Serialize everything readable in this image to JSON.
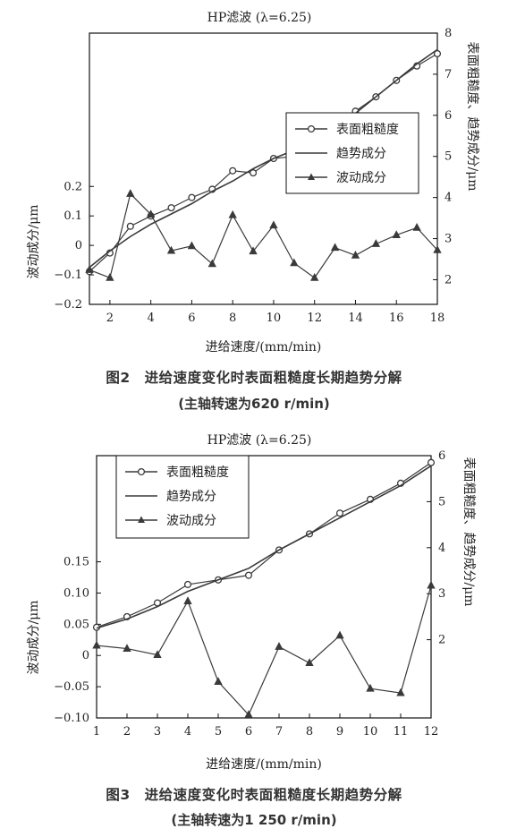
{
  "chart_data": [
    {
      "type": "line",
      "title": "HP滤波 (λ=6.25)",
      "xlabel": "进给速度/(mm/min)",
      "ylabel": "波动成分/μm",
      "y2label": "表面粗糙度、趋势成分/μm",
      "x_ticks": [
        "2",
        "4",
        "6",
        "8",
        "10",
        "12",
        "14",
        "16",
        "18"
      ],
      "y_ticks": [
        "−0.2",
        "−0.1",
        "0",
        "0.1",
        "0.2"
      ],
      "y2_ticks": [
        "2",
        "3",
        "4",
        "5",
        "6",
        "7",
        "8"
      ],
      "xlim": [
        1,
        18
      ],
      "ylim": [
        -0.2,
        0.72
      ],
      "y2lim": [
        1.4,
        8.0
      ],
      "legend_placement": "center-right",
      "series": [
        {
          "name": "表面粗糙度",
          "axis": "right",
          "marker": "circle",
          "x": [
            1,
            2,
            3,
            4,
            5,
            6,
            7,
            8,
            9,
            10,
            11,
            12,
            13,
            14,
            15,
            16,
            17,
            18
          ],
          "values": [
            2.2,
            2.65,
            3.3,
            3.55,
            3.75,
            4.0,
            4.2,
            4.65,
            4.6,
            4.95,
            5.0,
            5.35,
            5.75,
            6.1,
            6.45,
            6.85,
            7.2,
            7.5
          ]
        },
        {
          "name": "趋势成分",
          "axis": "right",
          "marker": "none",
          "x": [
            1,
            2,
            3,
            4,
            5,
            6,
            7,
            8,
            9,
            10,
            11,
            12,
            13,
            14,
            15,
            16,
            17,
            18
          ],
          "values": [
            2.3,
            2.7,
            3.05,
            3.35,
            3.6,
            3.85,
            4.15,
            4.4,
            4.7,
            4.95,
            5.15,
            5.4,
            5.7,
            6.05,
            6.45,
            6.85,
            7.25,
            7.6
          ]
        },
        {
          "name": "波动成分",
          "axis": "left",
          "marker": "triangle",
          "x": [
            1,
            2,
            3,
            4,
            5,
            6,
            7,
            8,
            9,
            10,
            11,
            12,
            13,
            14,
            15,
            16,
            17,
            18
          ],
          "values": [
            -0.083,
            -0.11,
            0.175,
            0.105,
            -0.018,
            -0.002,
            -0.063,
            0.103,
            -0.02,
            0.068,
            -0.06,
            -0.11,
            -0.008,
            -0.034,
            0.005,
            0.035,
            0.06,
            -0.016
          ]
        }
      ]
    },
    {
      "type": "line",
      "title": "HP滤波 (λ=6.25)",
      "xlabel": "进给速度/(mm/min)",
      "ylabel": "波动成分/μm",
      "y2label": "表面粗糙度、趋势成分/μm",
      "x_ticks": [
        "1",
        "2",
        "3",
        "4",
        "5",
        "6",
        "7",
        "8",
        "9",
        "10",
        "11",
        "12"
      ],
      "y_ticks": [
        "−0.10",
        "−0.05",
        "0",
        "0.05",
        "0.10",
        "0.15"
      ],
      "y2_ticks": [
        "2",
        "3",
        "4",
        "5",
        "6"
      ],
      "xlim": [
        1,
        12
      ],
      "ylim": [
        -0.1,
        0.32
      ],
      "y2lim": [
        0.3,
        6.0
      ],
      "legend_placement": "top-left",
      "series": [
        {
          "name": "表面粗糙度",
          "axis": "right",
          "marker": "circle",
          "x": [
            1,
            2,
            3,
            4,
            5,
            6,
            7,
            8,
            9,
            10,
            11,
            12
          ],
          "values": [
            2.27,
            2.5,
            2.8,
            3.2,
            3.3,
            3.4,
            3.95,
            4.3,
            4.75,
            5.05,
            5.4,
            5.85
          ]
        },
        {
          "name": "趋势成分",
          "axis": "right",
          "marker": "none",
          "x": [
            1,
            2,
            3,
            4,
            5,
            6,
            7,
            8,
            9,
            10,
            11,
            12
          ],
          "values": [
            2.25,
            2.45,
            2.72,
            3.05,
            3.3,
            3.55,
            3.95,
            4.3,
            4.65,
            5.0,
            5.35,
            5.78
          ]
        },
        {
          "name": "波动成分",
          "axis": "left",
          "marker": "triangle",
          "x": [
            1,
            2,
            3,
            4,
            5,
            6,
            7,
            8,
            9,
            10,
            11,
            12
          ],
          "values": [
            0.016,
            0.011,
            0.001,
            0.087,
            -0.042,
            -0.095,
            0.014,
            -0.012,
            0.032,
            -0.053,
            -0.06,
            0.112
          ]
        }
      ]
    }
  ],
  "captions": [
    {
      "title": "图2　进给速度变化时表面粗糙度长期趋势分解",
      "sub": "(主轴转速为620 r/min)"
    },
    {
      "title": "图3　进给速度变化时表面粗糙度长期趋势分解",
      "sub": "(主轴转速为1 250 r/min)"
    }
  ],
  "colors": {
    "line": "#3a3a3a",
    "axis": "#111111",
    "background": "#ffffff"
  }
}
